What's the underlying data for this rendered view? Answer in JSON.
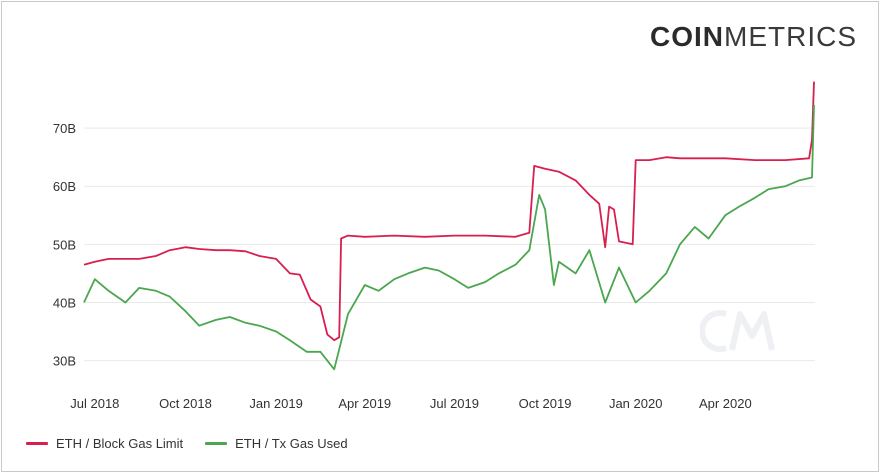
{
  "logo": {
    "bold": "COIN",
    "light": "METRICS"
  },
  "colors": {
    "block_gas_limit": "#d81f4f",
    "tx_gas_used": "#4aa64f",
    "grid": "#e9e9e9",
    "text": "#333333"
  },
  "chart_data": {
    "type": "line",
    "title": "",
    "xlabel": "",
    "ylabel": "",
    "x_range": [
      "2018-06-20",
      "2020-07-01"
    ],
    "ylim": [
      27,
      80
    ],
    "y_ticks": [
      {
        "value": 30,
        "label": "30B"
      },
      {
        "value": 40,
        "label": "40B"
      },
      {
        "value": 50,
        "label": "50B"
      },
      {
        "value": 60,
        "label": "60B"
      },
      {
        "value": 70,
        "label": "70B"
      }
    ],
    "x_ticks": [
      {
        "date": "2018-07-01",
        "label": "Jul 2018"
      },
      {
        "date": "2018-10-01",
        "label": "Oct 2018"
      },
      {
        "date": "2019-01-01",
        "label": "Jan 2019"
      },
      {
        "date": "2019-04-01",
        "label": "Apr 2019"
      },
      {
        "date": "2019-07-01",
        "label": "Jul 2019"
      },
      {
        "date": "2019-10-01",
        "label": "Oct 2019"
      },
      {
        "date": "2020-01-01",
        "label": "Jan 2020"
      },
      {
        "date": "2020-04-01",
        "label": "Apr 2020"
      }
    ],
    "grid": true,
    "legend_position": "bottom-left",
    "series": [
      {
        "name": "ETH / Block Gas Limit",
        "color": "#d81f4f",
        "points": [
          [
            "2018-06-20",
            46.5
          ],
          [
            "2018-07-01",
            47.0
          ],
          [
            "2018-07-15",
            47.5
          ],
          [
            "2018-08-01",
            47.5
          ],
          [
            "2018-08-15",
            47.5
          ],
          [
            "2018-09-01",
            48.0
          ],
          [
            "2018-09-15",
            49.0
          ],
          [
            "2018-10-01",
            49.5
          ],
          [
            "2018-10-15",
            49.2
          ],
          [
            "2018-11-01",
            49.0
          ],
          [
            "2018-11-15",
            49.0
          ],
          [
            "2018-12-01",
            48.8
          ],
          [
            "2018-12-15",
            48.0
          ],
          [
            "2019-01-01",
            47.5
          ],
          [
            "2019-01-15",
            45.0
          ],
          [
            "2019-01-25",
            44.8
          ],
          [
            "2019-02-05",
            40.5
          ],
          [
            "2019-02-15",
            39.3
          ],
          [
            "2019-02-22",
            34.5
          ],
          [
            "2019-03-01",
            33.5
          ],
          [
            "2019-03-06",
            34.0
          ],
          [
            "2019-03-08",
            51.0
          ],
          [
            "2019-03-15",
            51.5
          ],
          [
            "2019-04-01",
            51.3
          ],
          [
            "2019-05-01",
            51.5
          ],
          [
            "2019-06-01",
            51.3
          ],
          [
            "2019-07-01",
            51.5
          ],
          [
            "2019-08-01",
            51.5
          ],
          [
            "2019-09-01",
            51.3
          ],
          [
            "2019-09-15",
            52.0
          ],
          [
            "2019-09-20",
            63.5
          ],
          [
            "2019-10-01",
            63.0
          ],
          [
            "2019-10-15",
            62.5
          ],
          [
            "2019-11-01",
            61.0
          ],
          [
            "2019-11-15",
            58.5
          ],
          [
            "2019-11-25",
            57.0
          ],
          [
            "2019-12-01",
            49.5
          ],
          [
            "2019-12-05",
            56.5
          ],
          [
            "2019-12-10",
            56.0
          ],
          [
            "2019-12-15",
            50.5
          ],
          [
            "2019-12-29",
            50.0
          ],
          [
            "2020-01-01",
            64.5
          ],
          [
            "2020-01-15",
            64.5
          ],
          [
            "2020-02-01",
            65.0
          ],
          [
            "2020-02-15",
            64.8
          ],
          [
            "2020-03-01",
            64.8
          ],
          [
            "2020-04-01",
            64.8
          ],
          [
            "2020-05-01",
            64.5
          ],
          [
            "2020-06-01",
            64.5
          ],
          [
            "2020-06-25",
            64.8
          ],
          [
            "2020-06-28",
            68.0
          ],
          [
            "2020-06-30",
            78.0
          ]
        ]
      },
      {
        "name": "ETH / Tx Gas Used",
        "color": "#4aa64f",
        "points": [
          [
            "2018-06-20",
            40.0
          ],
          [
            "2018-07-01",
            44.0
          ],
          [
            "2018-07-15",
            42.0
          ],
          [
            "2018-08-01",
            40.0
          ],
          [
            "2018-08-15",
            42.5
          ],
          [
            "2018-09-01",
            42.0
          ],
          [
            "2018-09-15",
            41.0
          ],
          [
            "2018-10-01",
            38.5
          ],
          [
            "2018-10-15",
            36.0
          ],
          [
            "2018-11-01",
            37.0
          ],
          [
            "2018-11-15",
            37.5
          ],
          [
            "2018-12-01",
            36.5
          ],
          [
            "2018-12-15",
            36.0
          ],
          [
            "2019-01-01",
            35.0
          ],
          [
            "2019-01-15",
            33.5
          ],
          [
            "2019-02-01",
            31.5
          ],
          [
            "2019-02-15",
            31.5
          ],
          [
            "2019-03-01",
            28.5
          ],
          [
            "2019-03-15",
            38.0
          ],
          [
            "2019-04-01",
            43.0
          ],
          [
            "2019-04-15",
            42.0
          ],
          [
            "2019-05-01",
            44.0
          ],
          [
            "2019-05-15",
            45.0
          ],
          [
            "2019-06-01",
            46.0
          ],
          [
            "2019-06-15",
            45.5
          ],
          [
            "2019-07-01",
            44.0
          ],
          [
            "2019-07-15",
            42.5
          ],
          [
            "2019-08-01",
            43.5
          ],
          [
            "2019-08-15",
            45.0
          ],
          [
            "2019-09-01",
            46.5
          ],
          [
            "2019-09-15",
            49.0
          ],
          [
            "2019-09-25",
            58.5
          ],
          [
            "2019-10-01",
            56.0
          ],
          [
            "2019-10-10",
            43.0
          ],
          [
            "2019-10-15",
            47.0
          ],
          [
            "2019-11-01",
            45.0
          ],
          [
            "2019-11-15",
            49.0
          ],
          [
            "2019-12-01",
            40.0
          ],
          [
            "2019-12-15",
            46.0
          ],
          [
            "2020-01-01",
            40.0
          ],
          [
            "2020-01-15",
            42.0
          ],
          [
            "2020-02-01",
            45.0
          ],
          [
            "2020-02-15",
            50.0
          ],
          [
            "2020-03-01",
            53.0
          ],
          [
            "2020-03-15",
            51.0
          ],
          [
            "2020-04-01",
            55.0
          ],
          [
            "2020-04-15",
            56.5
          ],
          [
            "2020-05-01",
            58.0
          ],
          [
            "2020-05-15",
            59.5
          ],
          [
            "2020-06-01",
            60.0
          ],
          [
            "2020-06-15",
            61.0
          ],
          [
            "2020-06-28",
            61.5
          ],
          [
            "2020-06-30",
            74.0
          ]
        ]
      }
    ]
  },
  "legend": {
    "item1_label": "ETH / Block Gas Limit",
    "item2_label": "ETH / Tx Gas Used"
  }
}
